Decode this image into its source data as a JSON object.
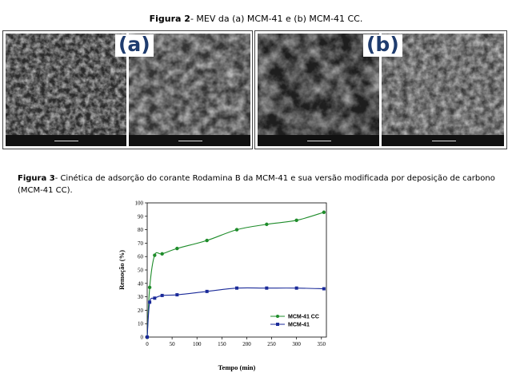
{
  "figure2": {
    "caption_label": "Figura 2",
    "caption_text": "- MEV da (a) MCM-41 e (b) MCM-41 CC.",
    "label_a": "(a)",
    "label_b": "(b)"
  },
  "figure3": {
    "caption_label": "Figura 3",
    "caption_text": "- Cinética de adsorção do corante Rodamina B da MCM-41 e sua versão modificada por deposição de carbono (MCM-41 CC)."
  },
  "chart_data": {
    "type": "line",
    "xlabel": "Tempo (min)",
    "ylabel": "Remoção (%)",
    "xlim": [
      0,
      360
    ],
    "ylim": [
      0,
      100
    ],
    "xticks": [
      0,
      50,
      100,
      150,
      200,
      250,
      300,
      350
    ],
    "yticks": [
      0,
      10,
      20,
      30,
      40,
      50,
      60,
      70,
      80,
      90,
      100
    ],
    "grid": false,
    "legend_position": "bottom-right",
    "series": [
      {
        "name": "MCM-41 CC",
        "color": "#1e8c2a",
        "marker": "circle",
        "x": [
          0,
          5,
          15,
          30,
          60,
          120,
          180,
          240,
          300,
          355
        ],
        "y": [
          0,
          37,
          61,
          62,
          66,
          72,
          80,
          84,
          87,
          93
        ]
      },
      {
        "name": "MCM-41",
        "color": "#1a2a99",
        "marker": "square",
        "x": [
          0,
          5,
          15,
          30,
          60,
          120,
          180,
          240,
          300,
          355
        ],
        "y": [
          0,
          26,
          29,
          31,
          31.5,
          34,
          36.5,
          36.5,
          36.5,
          36
        ]
      }
    ]
  }
}
